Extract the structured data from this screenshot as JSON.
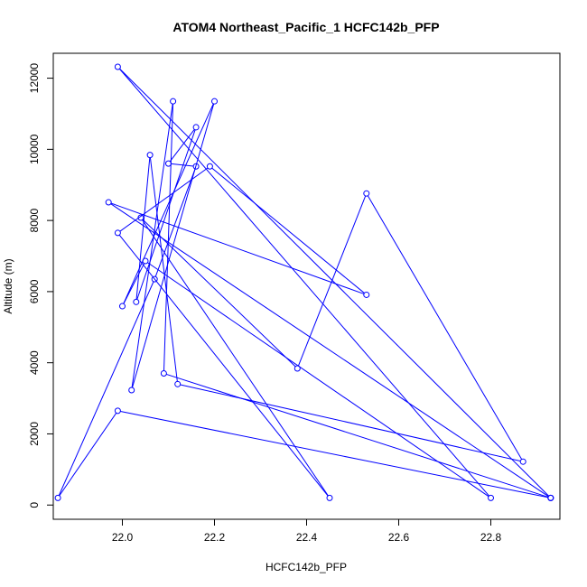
{
  "chart_data": {
    "type": "line",
    "title": "ATOM4 Northeast_Pacific_1 HCFC142b_PFP",
    "xlabel": "HCFC142b_PFP",
    "ylabel": "Altitude (m)",
    "xlim": [
      21.85,
      22.95
    ],
    "ylim": [
      -400,
      12700
    ],
    "xticks": [
      22.0,
      22.2,
      22.4,
      22.6,
      22.8
    ],
    "xtick_labels": [
      "22.0",
      "22.2",
      "22.4",
      "22.6",
      "22.8"
    ],
    "yticks": [
      0,
      2000,
      4000,
      6000,
      8000,
      10000,
      12000
    ],
    "ytick_labels": [
      "0",
      "2000",
      "4000",
      "6000",
      "8000",
      "10000",
      "12000"
    ],
    "grid": false,
    "series": [
      {
        "color": "#0000ff",
        "marker": "open-circle",
        "x": [
          22.93,
          21.99,
          22.8,
          22.05,
          22.0,
          22.2,
          22.02,
          22.11,
          22.09,
          22.93,
          21.97,
          22.53,
          22.19,
          21.99,
          22.45,
          22.04,
          22.38,
          22.53,
          22.87,
          22.12,
          22.06,
          22.03,
          22.16,
          22.1,
          22.16,
          22.07,
          21.86,
          21.99,
          22.93
        ],
        "y": [
          200,
          12320,
          200,
          6860,
          5590,
          11350,
          3230,
          11350,
          3700,
          200,
          8510,
          5910,
          9520,
          7650,
          200,
          8080,
          3840,
          8760,
          1220,
          3400,
          9840,
          5710,
          10620,
          9600,
          9520,
          6350,
          200,
          2650,
          200
        ]
      }
    ]
  }
}
